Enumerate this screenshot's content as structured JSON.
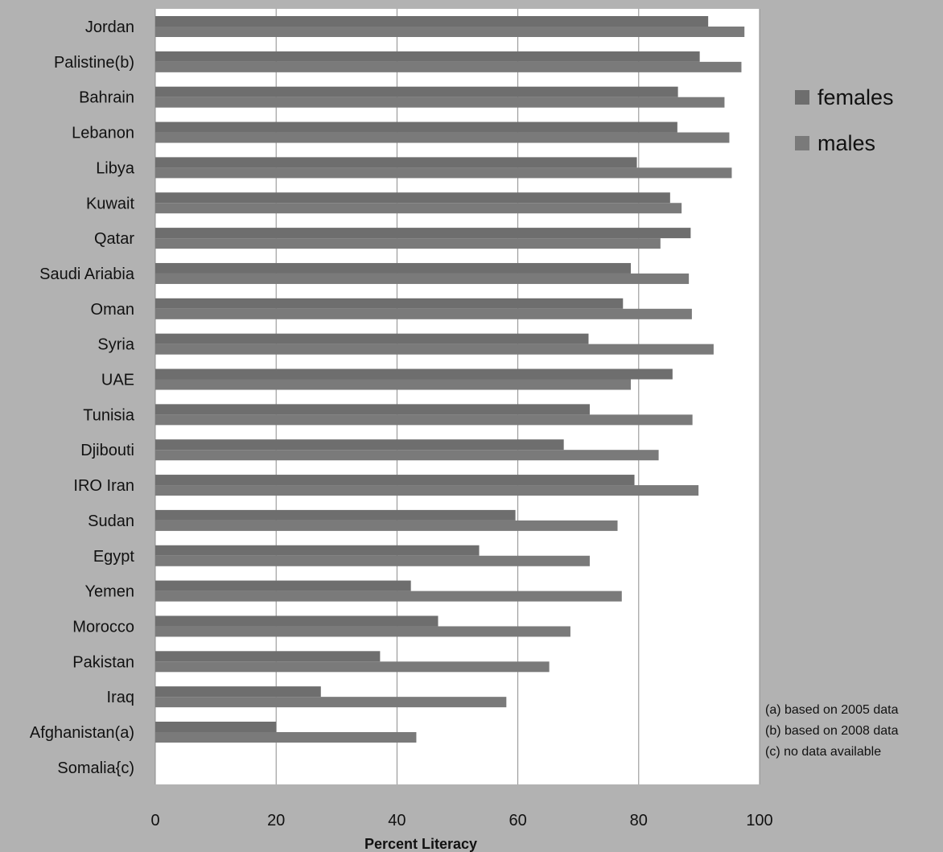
{
  "chart_data": {
    "type": "bar",
    "orientation": "horizontal",
    "categories": [
      "Jordan",
      "Palistine(b)",
      "Bahrain",
      "Lebanon",
      "Libya",
      "Kuwait",
      "Qatar",
      "Saudi Ariabia",
      "Oman",
      "Syria",
      "UAE",
      "Tunisia",
      "Djibouti",
      "IRO Iran",
      "Sudan",
      "Egypt",
      "Yemen",
      "Morocco",
      "Pakistan",
      "Iraq",
      "Afghanistan(a)",
      "Somalia{c)"
    ],
    "series": [
      {
        "name": "females",
        "color": "#6e6e6e",
        "values": [
          91.5,
          90.1,
          86.5,
          86.4,
          79.7,
          85.2,
          88.6,
          78.7,
          77.4,
          71.7,
          85.6,
          71.9,
          67.6,
          79.3,
          59.6,
          53.6,
          42.3,
          46.8,
          37.2,
          27.4,
          20.0,
          null
        ]
      },
      {
        "name": "males",
        "color": "#7a7a7a",
        "values": [
          97.5,
          97.0,
          94.2,
          95.0,
          95.4,
          87.1,
          83.6,
          88.3,
          88.8,
          92.4,
          78.7,
          88.9,
          83.3,
          89.9,
          76.5,
          71.9,
          77.2,
          68.7,
          65.2,
          58.1,
          43.2,
          null
        ]
      }
    ],
    "xlabel": "Percent Literacy",
    "xlim": [
      0,
      100
    ],
    "xticks": [
      0,
      20,
      40,
      60,
      80,
      100
    ],
    "grid": true,
    "legend_position": "right",
    "notes": [
      "(a) based on 2005 data",
      "(b) based on 2008 data",
      "(c) no data available"
    ]
  }
}
